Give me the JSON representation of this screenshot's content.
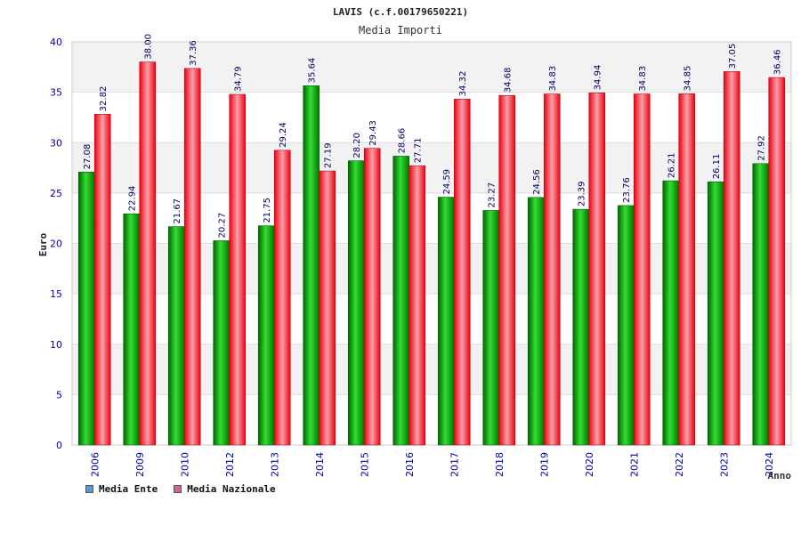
{
  "chart_data": {
    "type": "bar",
    "title": "LAVIS (c.f.00179650221)",
    "subtitle": "Media Importi",
    "xlabel": "Anno",
    "ylabel": "Euro",
    "ylim": [
      0,
      40
    ],
    "yticks": [
      0,
      5,
      10,
      15,
      20,
      25,
      30,
      35,
      40
    ],
    "categories": [
      "2006",
      "2009",
      "2010",
      "2012",
      "2013",
      "2014",
      "2015",
      "2016",
      "2017",
      "2018",
      "2019",
      "2020",
      "2021",
      "2022",
      "2023",
      "2024"
    ],
    "series": [
      {
        "name": "Media Ente",
        "color": "#00aa00",
        "legend_color": "#5b9bd5",
        "values": [
          27.08,
          22.94,
          21.67,
          20.27,
          21.75,
          35.64,
          28.2,
          28.66,
          24.59,
          23.27,
          24.56,
          23.39,
          23.76,
          26.21,
          26.11,
          27.92
        ],
        "labels": [
          "27.08",
          "22.94",
          "21.67",
          "20.27",
          "21.75",
          "35.64",
          "28.20",
          "28.66",
          "24.59",
          "23.27",
          "24.56",
          "23.39",
          "23.76",
          "26.21",
          "26.11",
          "27.92"
        ]
      },
      {
        "name": "Media Nazionale",
        "color": "#ee1122",
        "legend_color": "#cc6699",
        "values": [
          32.82,
          38.0,
          37.36,
          34.79,
          29.24,
          27.19,
          29.43,
          27.71,
          34.32,
          34.68,
          34.83,
          34.94,
          34.83,
          34.85,
          37.05,
          36.46
        ],
        "labels": [
          "32.82",
          "38.00",
          "37.36",
          "34.79",
          "29.24",
          "27.19",
          "29.43",
          "27.71",
          "34.32",
          "34.68",
          "34.83",
          "34.94",
          "34.83",
          "34.85",
          "37.05",
          "36.46"
        ]
      }
    ],
    "legend": "bottom-left",
    "grid": true
  }
}
